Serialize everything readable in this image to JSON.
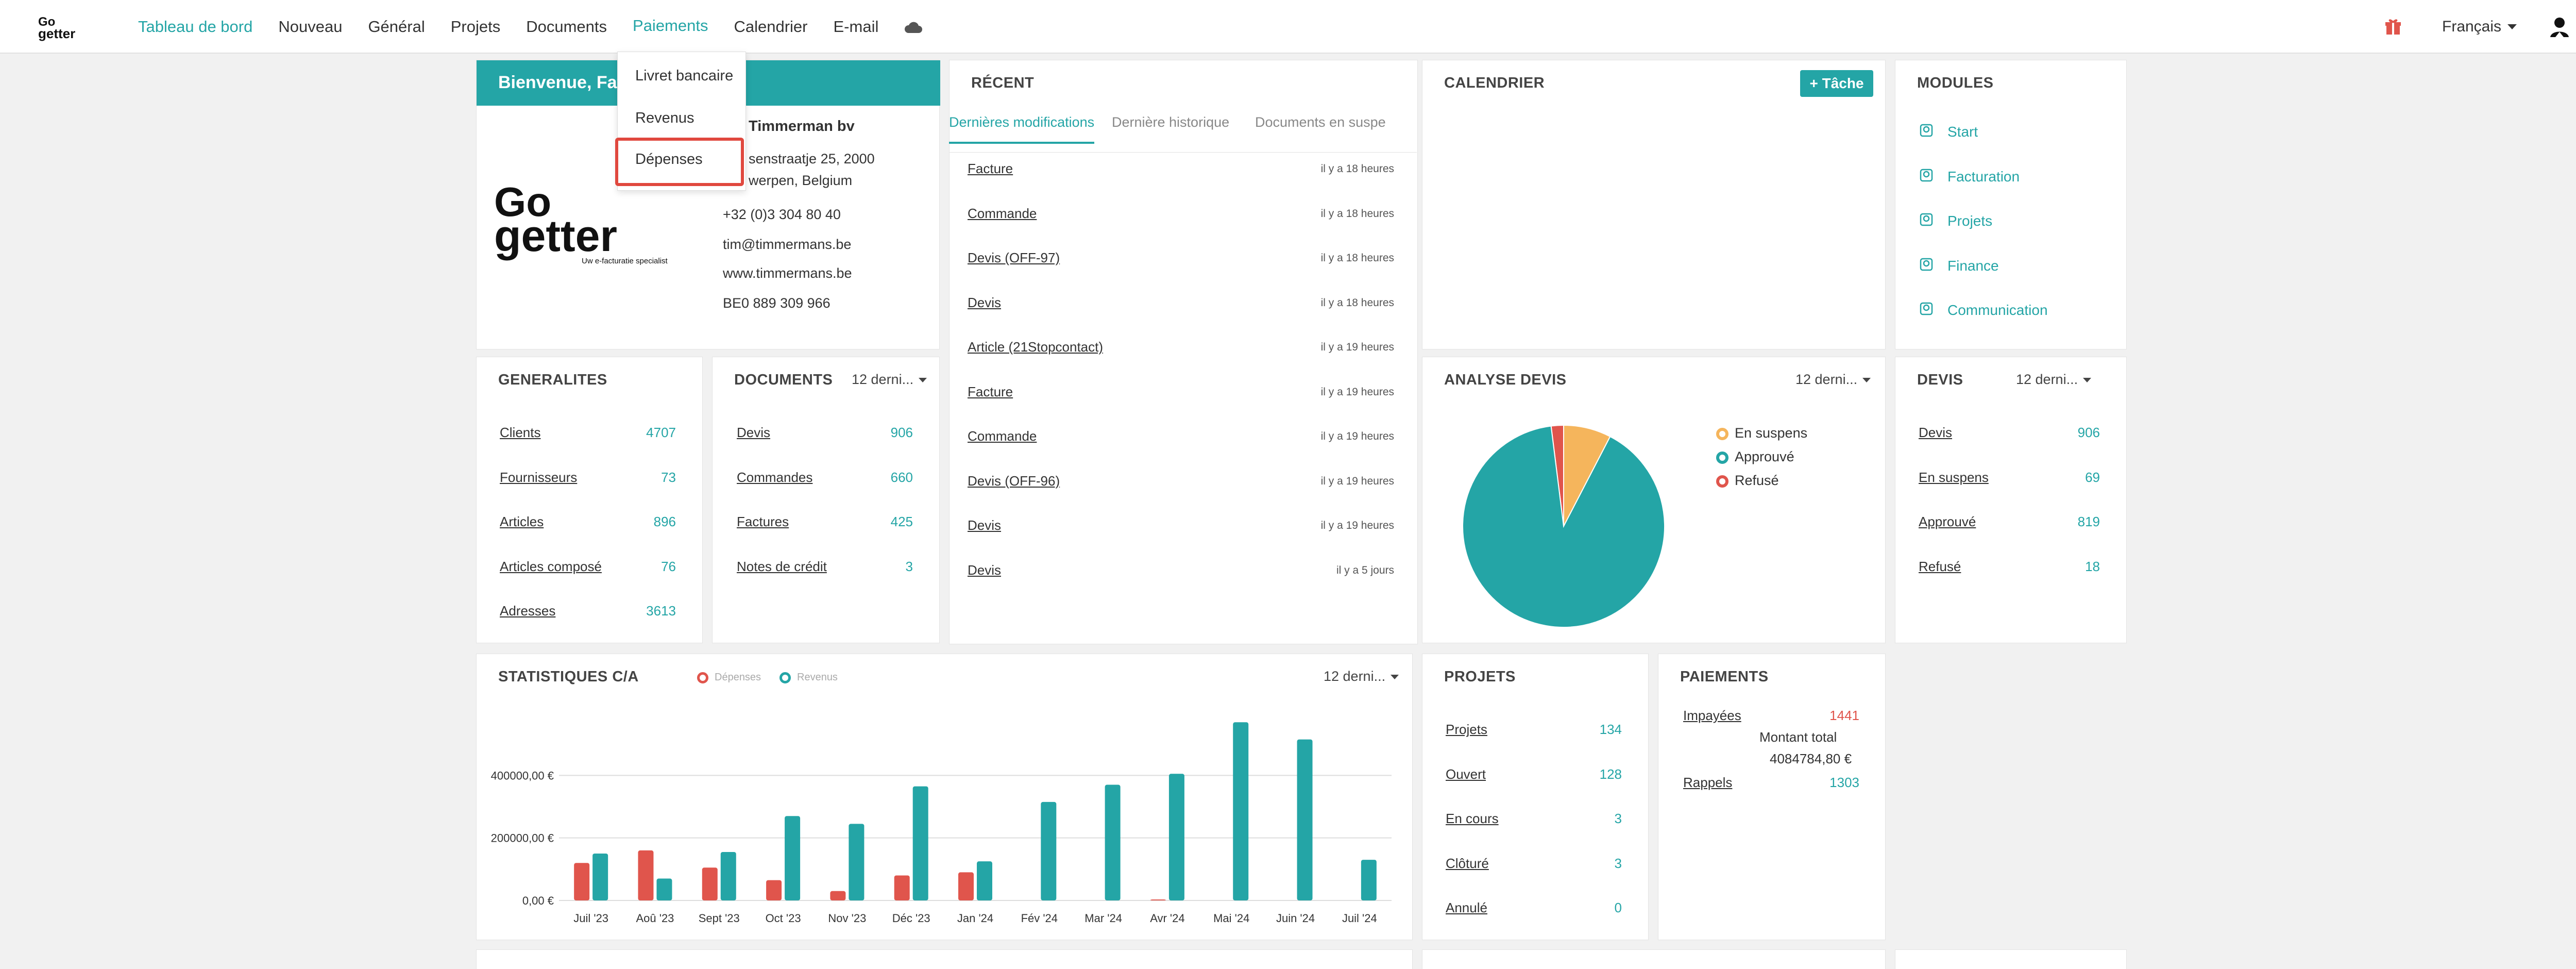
{
  "nav": {
    "items": [
      "Tableau de bord",
      "Nouveau",
      "Général",
      "Projets",
      "Documents",
      "Paiements",
      "Calendrier",
      "E-mail"
    ],
    "language": "Français"
  },
  "dropdown": {
    "items": [
      "Livret bancaire",
      "Revenus",
      "Dépenses"
    ],
    "highlighted": "Dépenses"
  },
  "welcome": {
    "title": "Bienvenue, Fat",
    "company": "Timmerman bv",
    "address1": "senstraatje 25, 2000",
    "address2": "werpen, Belgium",
    "phone": "+32 (0)3 304 80 40",
    "email": "tim@timmermans.be",
    "website": "www.timmermans.be",
    "vat": "BE0 889 309 966",
    "logo_tagline": "Uw e-facturatie specialist"
  },
  "recent": {
    "title": "RÉCENT",
    "tabs": [
      "Dernières modifications",
      "Dernière historique",
      "Documents en suspe"
    ],
    "items": [
      {
        "label": "Facture",
        "time": "il y a 18 heures"
      },
      {
        "label": "Commande",
        "time": "il y a 18 heures"
      },
      {
        "label": "Devis (OFF-97)",
        "time": "il y a 18 heures"
      },
      {
        "label": "Devis",
        "time": "il y a 18 heures"
      },
      {
        "label": "Article (21Stopcontact)",
        "time": "il y a 19 heures"
      },
      {
        "label": "Facture",
        "time": "il y a 19 heures"
      },
      {
        "label": "Commande",
        "time": "il y a 19 heures"
      },
      {
        "label": "Devis (OFF-96)",
        "time": "il y a 19 heures"
      },
      {
        "label": "Devis",
        "time": "il y a 19 heures"
      },
      {
        "label": "Devis",
        "time": "il y a 5 jours"
      }
    ]
  },
  "calendar": {
    "title": "CALENDRIER",
    "button": "+ Tâche"
  },
  "modules": {
    "title": "MODULES",
    "items": [
      "Start",
      "Facturation",
      "Projets",
      "Finance",
      "Communication"
    ]
  },
  "generalites": {
    "title": "GENERALITES",
    "rows": [
      {
        "label": "Clients",
        "value": "4707"
      },
      {
        "label": "Fournisseurs",
        "value": "73"
      },
      {
        "label": "Articles",
        "value": "896"
      },
      {
        "label": "Articles composé",
        "value": "76"
      },
      {
        "label": "Adresses",
        "value": "3613"
      }
    ]
  },
  "documents": {
    "title": "DOCUMENTS",
    "filter": "12 derni...",
    "rows": [
      {
        "label": "Devis",
        "value": "906"
      },
      {
        "label": "Commandes",
        "value": "660"
      },
      {
        "label": "Factures",
        "value": "425"
      },
      {
        "label": "Notes de crédit",
        "value": "3"
      }
    ]
  },
  "analyse": {
    "title": "ANALYSE DEVIS",
    "filter": "12 derni...",
    "legend": [
      {
        "label": "En suspens",
        "color": "#f5b55c"
      },
      {
        "label": "Approuvé",
        "color": "#24a5a6"
      },
      {
        "label": "Refusé",
        "color": "#e0554c"
      }
    ]
  },
  "devis": {
    "title": "DEVIS",
    "filter": "12 derni...",
    "rows": [
      {
        "label": "Devis",
        "value": "906"
      },
      {
        "label": "En suspens",
        "value": "69"
      },
      {
        "label": "Approuvé",
        "value": "819"
      },
      {
        "label": "Refusé",
        "value": "18"
      }
    ]
  },
  "stats": {
    "title": "STATISTIQUES C/A",
    "filter": "12 derni...",
    "legend": [
      {
        "label": "Dépenses",
        "color": "#e0554c"
      },
      {
        "label": "Revenus",
        "color": "#24a5a6"
      }
    ]
  },
  "projets": {
    "title": "PROJETS",
    "rows": [
      {
        "label": "Projets",
        "value": "134"
      },
      {
        "label": "Ouvert",
        "value": "128"
      },
      {
        "label": "En cours",
        "value": "3"
      },
      {
        "label": "Clôturé",
        "value": "3"
      },
      {
        "label": "Annulé",
        "value": "0"
      }
    ]
  },
  "paiements": {
    "title": "PAIEMENTS",
    "impayees_label": "Impayées",
    "impayees_value": "1441",
    "montant_label": "Montant total",
    "montant_value": "4084784,80 €",
    "rappels_label": "Rappels",
    "rappels_value": "1303"
  },
  "chart_data": [
    {
      "type": "pie",
      "title": "ANALYSE DEVIS",
      "labels": [
        "En suspens",
        "Approuvé",
        "Refusé"
      ],
      "values": [
        69,
        819,
        18
      ],
      "colors": [
        "#f5b55c",
        "#24a5a6",
        "#e0554c"
      ]
    },
    {
      "type": "bar",
      "title": "STATISTIQUES C/A",
      "categories": [
        "Juil '23",
        "Aoû '23",
        "Sept '23",
        "Oct '23",
        "Nov '23",
        "Déc '23",
        "Jan '24",
        "Fév '24",
        "Mar '24",
        "Avr '24",
        "Mai '24",
        "Juin '24",
        "Juil '24"
      ],
      "series": [
        {
          "name": "Dépenses",
          "color": "#e0554c",
          "values": [
            120000,
            160000,
            105000,
            65000,
            30000,
            80000,
            90000,
            0,
            0,
            3000,
            0,
            0,
            0
          ]
        },
        {
          "name": "Revenus",
          "color": "#24a5a6",
          "values": [
            150000,
            70000,
            155000,
            270000,
            245000,
            365000,
            125000,
            315000,
            370000,
            405000,
            570000,
            515000,
            130000
          ]
        }
      ],
      "yticks": [
        "0,00 €",
        "200000,00 €",
        "400000,00 €"
      ],
      "ylim": [
        0,
        600000
      ]
    }
  ]
}
